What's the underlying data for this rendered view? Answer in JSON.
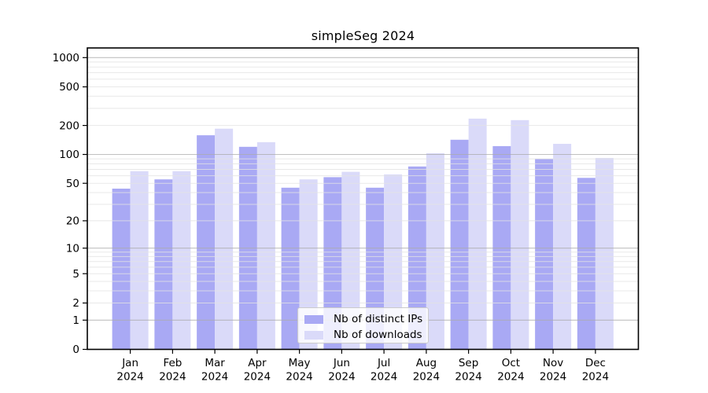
{
  "chart_data": {
    "type": "bar",
    "title": "simpleSeg 2024",
    "categories": [
      "Jan",
      "Feb",
      "Mar",
      "Apr",
      "May",
      "Jun",
      "Jul",
      "Aug",
      "Sep",
      "Oct",
      "Nov",
      "Dec"
    ],
    "category_year": "2024",
    "series": [
      {
        "name": "Nb of distinct IPs",
        "color": "#a9a9f4",
        "values": [
          44,
          55,
          158,
          120,
          45,
          58,
          45,
          75,
          142,
          122,
          90,
          57
        ]
      },
      {
        "name": "Nb of downloads",
        "color": "#dadaf9",
        "values": [
          67,
          67,
          185,
          134,
          55,
          66,
          62,
          103,
          235,
          227,
          129,
          92
        ]
      }
    ],
    "xlabel": "",
    "ylabel": "",
    "yscale": "symlog",
    "yticks": [
      0,
      1,
      2,
      5,
      10,
      20,
      50,
      100,
      200,
      500,
      1000
    ],
    "ylim": [
      0,
      1256
    ],
    "grid": true,
    "grid_major_color": "#ababab",
    "grid_minor_color": "#e3e3e3",
    "axis_color": "#000000",
    "legend_position": "lower center",
    "legend_border_color": "#cbcbcb"
  }
}
